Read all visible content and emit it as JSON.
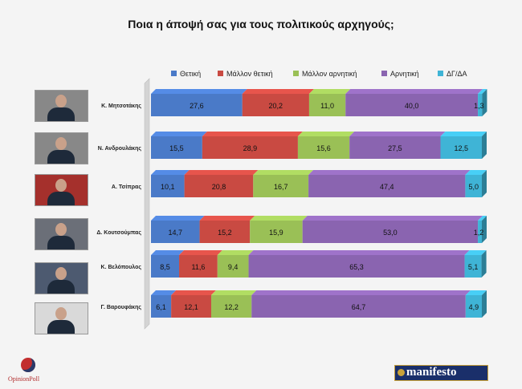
{
  "title": "Ποια η άποψή σας για τους πολιτικούς αρχηγούς;",
  "logos": {
    "left": "OpinionPoll",
    "right": "manifesto"
  },
  "chart_data": {
    "type": "bar",
    "orientation": "horizontal",
    "stacked": true,
    "categories": [
      "Κ. Μητσοτάκης",
      "Ν. Ανδρουλάκης",
      "Α. Τσίπρας",
      "Δ. Κουτσούμπας",
      "Κ. Βελόπουλος",
      "Γ. Βαρουφάκης"
    ],
    "series": [
      {
        "name": "Θετική",
        "color": "#4a7ac8",
        "values": [
          27.6,
          15.5,
          10.1,
          14.7,
          8.5,
          6.1
        ]
      },
      {
        "name": "Μάλλον θετική",
        "color": "#c94a42",
        "values": [
          20.2,
          28.9,
          20.8,
          15.2,
          11.6,
          12.1
        ]
      },
      {
        "name": "Μάλλον αρνητική",
        "color": "#9ac056",
        "values": [
          11.0,
          15.6,
          16.7,
          15.9,
          9.4,
          12.2
        ]
      },
      {
        "name": "Αρνητική",
        "color": "#8a64b0",
        "values": [
          40.0,
          27.5,
          47.4,
          53.0,
          65.3,
          64.7
        ]
      },
      {
        "name": "ΔΓ/ΔΑ",
        "color": "#3fb4d6",
        "values": [
          1.3,
          12.5,
          5.0,
          1.2,
          5.1,
          4.9
        ]
      }
    ],
    "value_labels": [
      [
        "27,6",
        "20,2",
        "11,0",
        "40,0",
        "1,3"
      ],
      [
        "15,5",
        "28,9",
        "15,6",
        "27,5",
        "12,5"
      ],
      [
        "10,1",
        "20,8",
        "16,7",
        "47,4",
        "5,0"
      ],
      [
        "14,7",
        "15,2",
        "15,9",
        "53,0",
        "1,2"
      ],
      [
        "8,5",
        "11,6",
        "9,4",
        "65,3",
        "5,1"
      ],
      [
        "6,1",
        "12,1",
        "12,2",
        "64,7",
        "4,9"
      ]
    ],
    "legend_position": "top",
    "xlim": [
      0,
      100
    ]
  }
}
